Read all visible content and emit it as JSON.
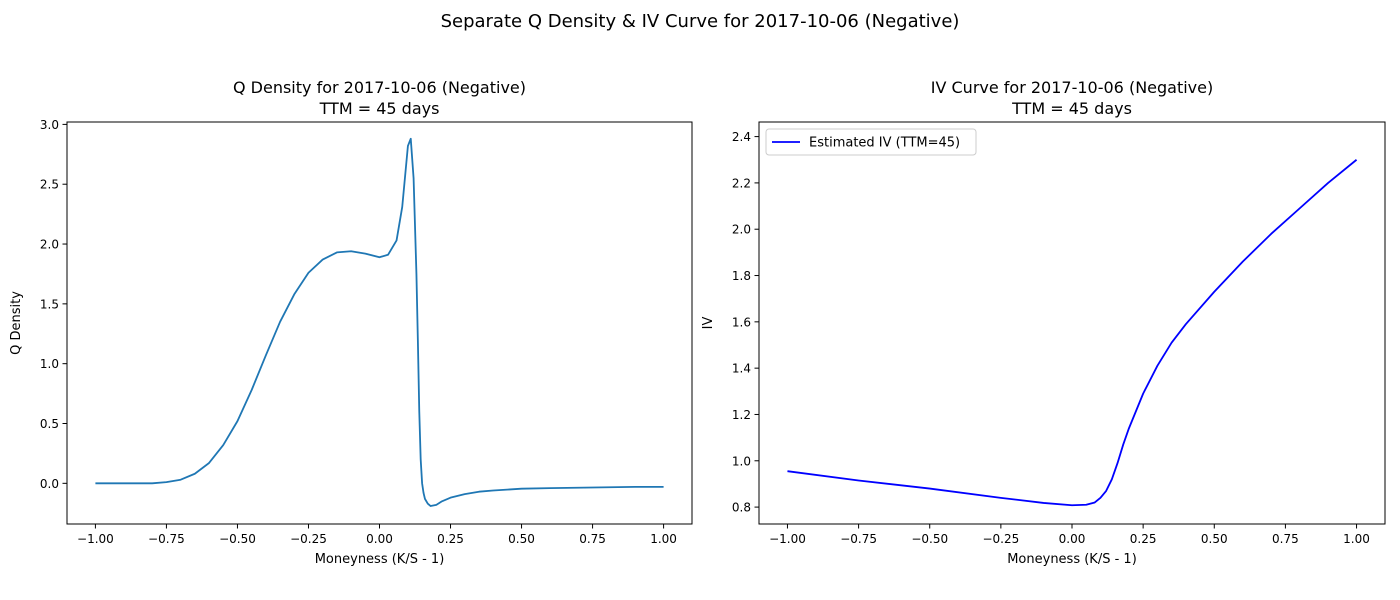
{
  "figure_title": "Separate Q Density & IV Curve for 2017-10-06 (Negative)",
  "chart_data": [
    {
      "type": "line",
      "title": "Q Density for 2017-10-06 (Negative)",
      "subtitle": "TTM = 45 days",
      "xlabel": "Moneyness (K/S - 1)",
      "ylabel": "Q Density",
      "xlim": [
        -1.1,
        1.1
      ],
      "ylim": [
        -0.34,
        3.02
      ],
      "xticks": [
        -1.0,
        -0.75,
        -0.5,
        -0.25,
        0.0,
        0.25,
        0.5,
        0.75,
        1.0
      ],
      "xtick_labels": [
        "−1.00",
        "−0.75",
        "−0.50",
        "−0.25",
        "0.00",
        "0.25",
        "0.50",
        "0.75",
        "1.00"
      ],
      "yticks": [
        0.0,
        0.5,
        1.0,
        1.5,
        2.0,
        2.5,
        3.0
      ],
      "ytick_labels": [
        "0.0",
        "0.5",
        "1.0",
        "1.5",
        "2.0",
        "2.5",
        "3.0"
      ],
      "grid": false,
      "series": [
        {
          "color": "#1f77b4",
          "x": [
            -1.0,
            -0.9,
            -0.8,
            -0.75,
            -0.7,
            -0.65,
            -0.6,
            -0.55,
            -0.5,
            -0.45,
            -0.4,
            -0.35,
            -0.3,
            -0.25,
            -0.2,
            -0.15,
            -0.1,
            -0.05,
            0.0,
            0.03,
            0.06,
            0.08,
            0.1,
            0.11,
            0.12,
            0.13,
            0.135,
            0.14,
            0.145,
            0.15,
            0.155,
            0.16,
            0.17,
            0.18,
            0.2,
            0.22,
            0.25,
            0.3,
            0.35,
            0.4,
            0.5,
            0.6,
            0.75,
            0.9,
            1.0
          ],
          "y": [
            0.0,
            0.0,
            0.0,
            0.01,
            0.03,
            0.08,
            0.17,
            0.32,
            0.52,
            0.78,
            1.07,
            1.35,
            1.58,
            1.76,
            1.87,
            1.93,
            1.94,
            1.92,
            1.89,
            1.91,
            2.03,
            2.31,
            2.82,
            2.88,
            2.55,
            1.75,
            1.2,
            0.6,
            0.2,
            0.0,
            -0.08,
            -0.13,
            -0.17,
            -0.19,
            -0.18,
            -0.15,
            -0.12,
            -0.09,
            -0.07,
            -0.06,
            -0.045,
            -0.04,
            -0.035,
            -0.03,
            -0.03
          ]
        }
      ]
    },
    {
      "type": "line",
      "title": "IV Curve for 2017-10-06 (Negative)",
      "subtitle": "TTM = 45 days",
      "xlabel": "Moneyness (K/S - 1)",
      "ylabel": "IV",
      "xlim": [
        -1.1,
        1.1
      ],
      "ylim": [
        0.727,
        2.463
      ],
      "xticks": [
        -1.0,
        -0.75,
        -0.5,
        -0.25,
        0.0,
        0.25,
        0.5,
        0.75,
        1.0
      ],
      "xtick_labels": [
        "−1.00",
        "−0.75",
        "−0.50",
        "−0.25",
        "0.00",
        "0.25",
        "0.50",
        "0.75",
        "1.00"
      ],
      "yticks": [
        0.8,
        1.0,
        1.2,
        1.4,
        1.6,
        1.8,
        2.0,
        2.2,
        2.4
      ],
      "ytick_labels": [
        "0.8",
        "1.0",
        "1.2",
        "1.4",
        "1.6",
        "1.8",
        "2.0",
        "2.2",
        "2.4"
      ],
      "grid": false,
      "legend": "top-left",
      "series": [
        {
          "name": "Estimated IV (TTM=45)",
          "color": "#0000ff",
          "x": [
            -1.0,
            -0.75,
            -0.5,
            -0.25,
            -0.1,
            0.0,
            0.05,
            0.08,
            0.1,
            0.12,
            0.14,
            0.16,
            0.18,
            0.2,
            0.25,
            0.3,
            0.35,
            0.4,
            0.5,
            0.6,
            0.7,
            0.8,
            0.9,
            1.0
          ],
          "y": [
            0.955,
            0.915,
            0.88,
            0.84,
            0.818,
            0.808,
            0.81,
            0.82,
            0.84,
            0.87,
            0.92,
            0.99,
            1.07,
            1.14,
            1.29,
            1.41,
            1.51,
            1.59,
            1.73,
            1.86,
            1.98,
            2.09,
            2.2,
            2.3
          ]
        }
      ]
    }
  ]
}
